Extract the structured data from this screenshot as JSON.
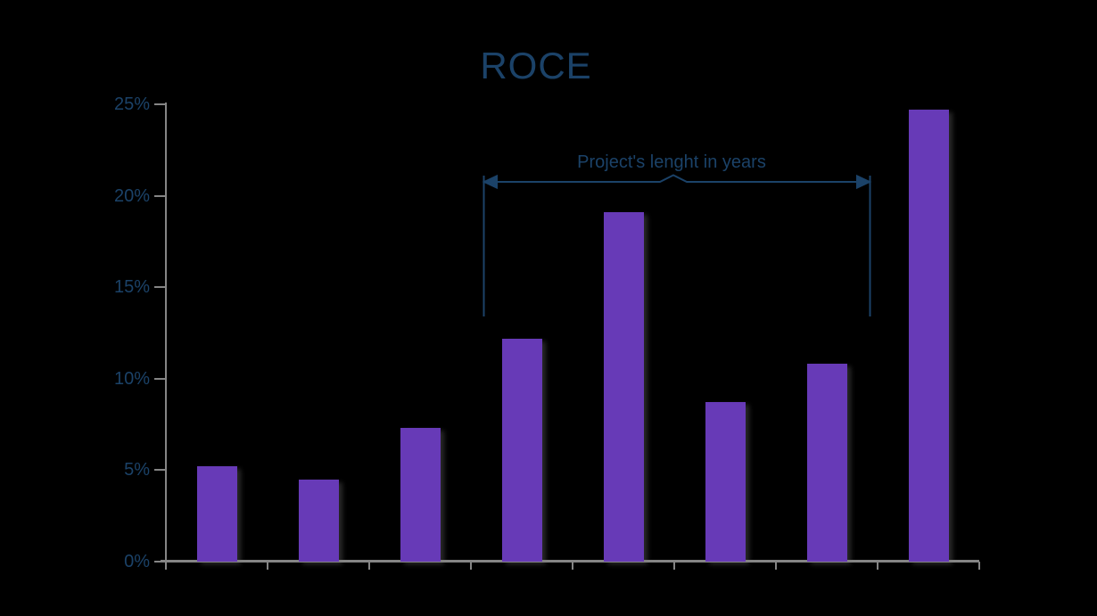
{
  "title": "ROCE",
  "annotation": {
    "label": "Project's lenght in years"
  },
  "y_axis": {
    "tick_labels": [
      "0%",
      "5%",
      "10%",
      "15%",
      "20%",
      "25%"
    ]
  },
  "chart_data": {
    "type": "bar",
    "title": "ROCE",
    "categories": [
      "",
      "",
      "",
      "",
      "",
      "",
      "",
      ""
    ],
    "values": [
      5.2,
      4.5,
      7.3,
      12.2,
      19.1,
      8.7,
      10.8,
      24.7
    ],
    "unit": "%",
    "xlabel": "",
    "ylabel": "",
    "ylim": [
      0,
      25
    ],
    "ytick_labels": [
      "0%",
      "5%",
      "10%",
      "15%",
      "20%",
      "25%"
    ],
    "grid": false,
    "legend": false,
    "annotation": {
      "text": "Project's lenght in years",
      "spans_bar_indices": [
        3,
        6
      ]
    },
    "colors": {
      "bar": "#673AB7",
      "axis": "#858585",
      "text": "#1B4268",
      "background": "#000000"
    }
  }
}
